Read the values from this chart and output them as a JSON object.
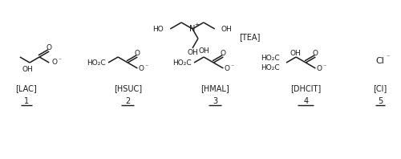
{
  "bg_color": "#ffffff",
  "fig_width": 5.0,
  "fig_height": 1.98,
  "dpi": 100,
  "line_color": "#1a1a1a",
  "text_color": "#1a1a1a",
  "tea_label": "[TEA]",
  "lac_label": "[LAC]",
  "hsuc_label": "[HSUC]",
  "hmal_label": "[HMAL]",
  "dhcit_label": "[DHCIT]",
  "cl_label": "[Cl]",
  "nums": [
    "1",
    "2",
    "3",
    "4",
    "5"
  ]
}
